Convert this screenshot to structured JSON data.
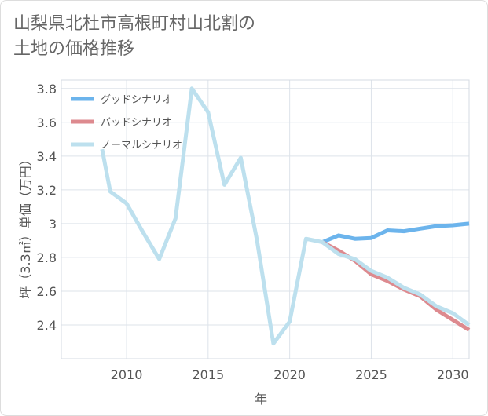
{
  "title_lines": [
    "山梨県北杜市高根町村山北割の",
    "土地の価格推移"
  ],
  "chart_data": {
    "type": "line",
    "title": "山梨県北杜市高根町村山北割の土地の価格推移",
    "xlabel": "年",
    "ylabel": "坪（3.3㎡）単価（万円）",
    "xlim": [
      2006,
      2031
    ],
    "ylim": [
      2.2,
      3.85
    ],
    "x_ticks": [
      2010,
      2015,
      2020,
      2025,
      2030
    ],
    "y_ticks": [
      {
        "value": 2.4,
        "label": "2.4"
      },
      {
        "value": 2.6,
        "label": "2.6"
      },
      {
        "value": 2.8,
        "label": "2.8"
      },
      {
        "value": 3.0,
        "label": "3"
      },
      {
        "value": 3.2,
        "label": "3.2"
      },
      {
        "value": 3.4,
        "label": "3.4"
      },
      {
        "value": 3.6,
        "label": "3.6"
      },
      {
        "value": 3.8,
        "label": "3.8"
      }
    ],
    "grid": true,
    "legend_position": "top-left",
    "series": [
      {
        "name": "グッドシナリオ",
        "color": "#6cb4ec",
        "points": [
          [
            2022,
            2.89
          ],
          [
            2023,
            2.93
          ],
          [
            2024,
            2.91
          ],
          [
            2025,
            2.915
          ],
          [
            2026,
            2.96
          ],
          [
            2027,
            2.955
          ],
          [
            2028,
            2.97
          ],
          [
            2029,
            2.985
          ],
          [
            2030,
            2.99
          ],
          [
            2031,
            3.0
          ]
        ]
      },
      {
        "name": "バッドシナリオ",
        "color": "#dd8a8f",
        "points": [
          [
            2022,
            2.89
          ],
          [
            2023,
            2.84
          ],
          [
            2024,
            2.78
          ],
          [
            2025,
            2.7
          ],
          [
            2026,
            2.66
          ],
          [
            2027,
            2.61
          ],
          [
            2028,
            2.57
          ],
          [
            2029,
            2.49
          ],
          [
            2030,
            2.43
          ],
          [
            2031,
            2.37
          ]
        ]
      },
      {
        "name": "ノーマルシナリオ",
        "color": "#bde0ee",
        "points": [
          [
            2008.5,
            3.44
          ],
          [
            2009,
            3.19
          ],
          [
            2010,
            3.12
          ],
          [
            2011,
            2.95
          ],
          [
            2012,
            2.79
          ],
          [
            2013,
            3.03
          ],
          [
            2014,
            3.8
          ],
          [
            2015,
            3.66
          ],
          [
            2016,
            3.23
          ],
          [
            2017,
            3.39
          ],
          [
            2018,
            2.9
          ],
          [
            2019,
            2.29
          ],
          [
            2020,
            2.42
          ],
          [
            2021,
            2.91
          ],
          [
            2022,
            2.89
          ],
          [
            2023,
            2.82
          ],
          [
            2024,
            2.79
          ],
          [
            2025,
            2.72
          ],
          [
            2026,
            2.68
          ],
          [
            2027,
            2.62
          ],
          [
            2028,
            2.58
          ],
          [
            2029,
            2.51
          ],
          [
            2030,
            2.47
          ],
          [
            2031,
            2.4
          ]
        ]
      }
    ]
  }
}
